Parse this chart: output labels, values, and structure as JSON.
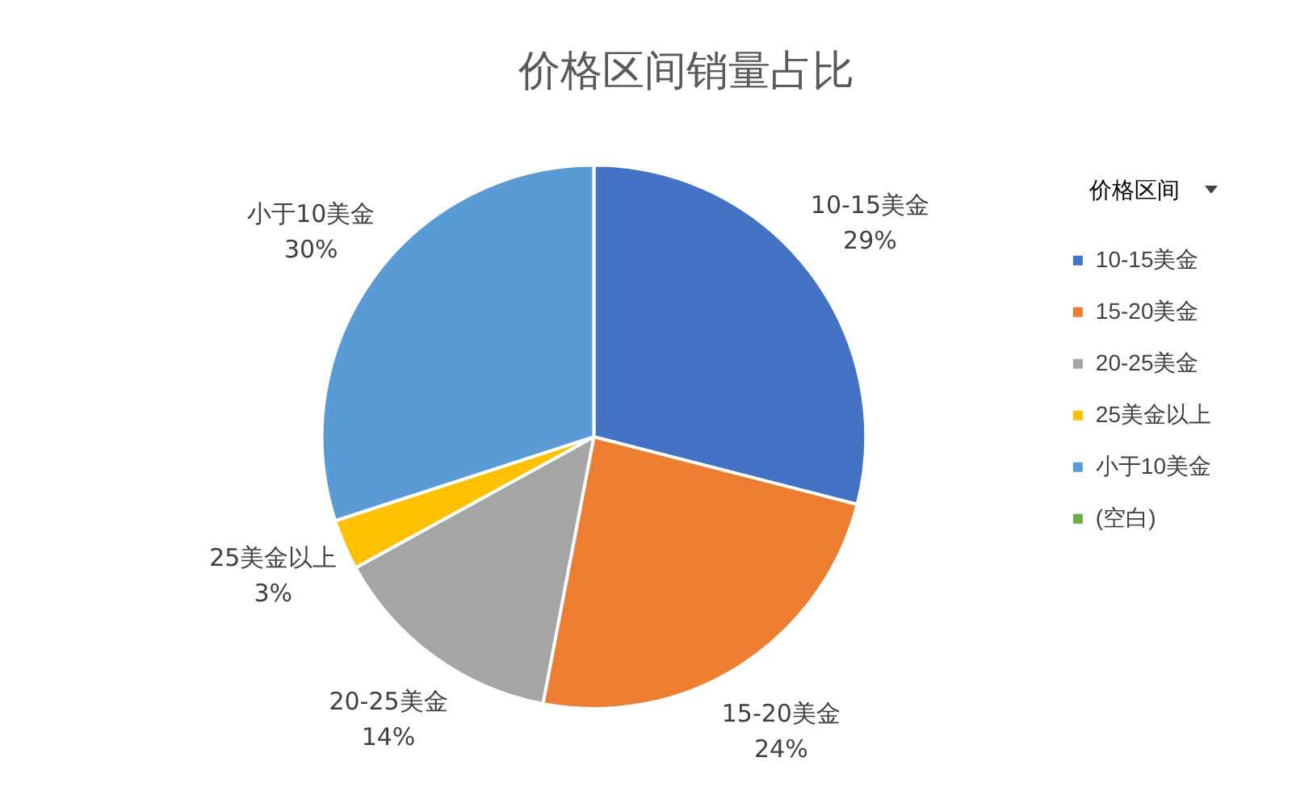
{
  "chart_data": {
    "type": "pie",
    "title": "价格区间销量占比",
    "legend_title": "价格区间",
    "legend": "right",
    "categories": [
      "10-15美金",
      "15-20美金",
      "20-25美金",
      "25美金以上",
      "小于10美金",
      "(空白)"
    ],
    "values": [
      29,
      24,
      14,
      3,
      30,
      0
    ],
    "colors": [
      "#4472c4",
      "#ed7d31",
      "#a5a5a5",
      "#ffc000",
      "#5b9bd5",
      "#70ad47"
    ],
    "value_labels": [
      "29%",
      "24%",
      "14%",
      "3%",
      "30%",
      null
    ]
  }
}
